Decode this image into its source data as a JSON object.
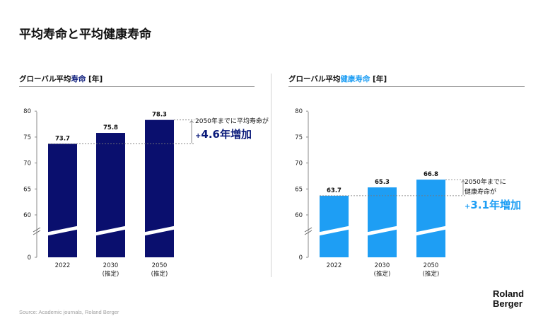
{
  "page": {
    "title": "平均寿命と平均健康寿命"
  },
  "panels": [
    {
      "title_prefix": "グローバル平均",
      "title_highlight": "寿命",
      "title_suffix": " [年]",
      "annotation_line1": "2050年までに平均寿命が",
      "annotation_line2": "",
      "annotation_sign": "+",
      "annotation_big": "4.6年増加",
      "accent_color": "#0a1a7a",
      "bar_color": "#0a0f6e"
    },
    {
      "title_prefix": "グローバル平均",
      "title_highlight": "健康寿命",
      "title_suffix": " [年]",
      "annotation_line1": "2050年までに",
      "annotation_line2": "健康寿命が",
      "annotation_sign": "+",
      "annotation_big": "3.1年増加",
      "accent_color": "#1e9ef4",
      "bar_color": "#1e9ef4"
    }
  ],
  "chart_data": [
    {
      "type": "bar",
      "categories": [
        "2022",
        "2030\n(推定)",
        "2050\n(推定)"
      ],
      "values": [
        73.7,
        75.8,
        78.3
      ],
      "title": "グローバル平均寿命 [年]",
      "xlabel": "",
      "ylabel": "",
      "ylim": [
        0,
        80
      ],
      "y_ticks": [
        0,
        60,
        65,
        70,
        75,
        80
      ],
      "axis_break": true,
      "grid": false,
      "value_labels": [
        "73.7",
        "75.8",
        "78.3"
      ]
    },
    {
      "type": "bar",
      "categories": [
        "2022",
        "2030\n(推定)",
        "2050\n(推定)"
      ],
      "values": [
        63.7,
        65.3,
        66.8
      ],
      "title": "グローバル平均健康寿命 [年]",
      "xlabel": "",
      "ylabel": "",
      "ylim": [
        0,
        80
      ],
      "y_ticks": [
        0,
        60,
        65,
        70,
        75,
        80
      ],
      "axis_break": true,
      "grid": false,
      "value_labels": [
        "63.7",
        "65.3",
        "66.8"
      ]
    }
  ],
  "footer": {
    "source": "Source: Academic journals, Roland Berger",
    "logo_line1": "Roland",
    "logo_line2": "Berger"
  }
}
